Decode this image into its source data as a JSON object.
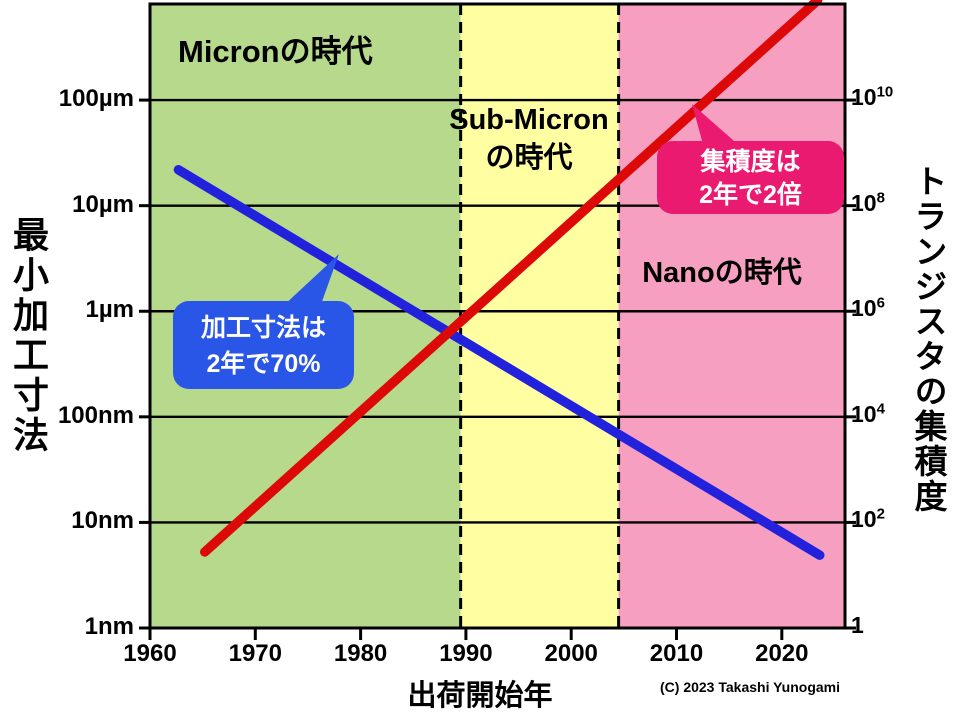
{
  "chart_data": {
    "type": "line",
    "title": "",
    "x_axis": {
      "label": "出荷開始年",
      "range": [
        1960,
        2026
      ],
      "ticks": [
        1960,
        1970,
        1980,
        1990,
        2000,
        2010,
        2020
      ]
    },
    "y_left": {
      "label": "最小加工寸法",
      "scale": "log",
      "range_log10": [
        0,
        5.91
      ],
      "ticks": [
        {
          "label": "100µm",
          "log10": 5
        },
        {
          "label": "10µm",
          "log10": 4
        },
        {
          "label": "1µm",
          "log10": 3
        },
        {
          "label": "100nm",
          "log10": 2
        },
        {
          "label": "10nm",
          "log10": 1
        },
        {
          "label": "1nm",
          "log10": 0
        }
      ]
    },
    "y_right": {
      "label": "トランジスタの集積度",
      "scale": "log",
      "range_log10": [
        0,
        11.82
      ],
      "ticks": [
        {
          "mantissa": "10",
          "exp": "10",
          "log10": 10
        },
        {
          "mantissa": "10",
          "exp": "8",
          "log10": 8
        },
        {
          "mantissa": "10",
          "exp": "6",
          "log10": 6
        },
        {
          "mantissa": "10",
          "exp": "4",
          "log10": 4
        },
        {
          "mantissa": "10",
          "exp": "2",
          "log10": 2
        },
        {
          "mantissa": "1",
          "exp": "",
          "log10": 0
        }
      ]
    },
    "regions": [
      {
        "name": "micron-era",
        "label": "Micronの時代",
        "from": 1960,
        "to": 1989.5,
        "color": "#b7d98b"
      },
      {
        "name": "sub-micron-era",
        "label": "Sub-Micronの時代",
        "label_line1": "Sub-Micron",
        "label_line2": "の時代",
        "from": 1989.5,
        "to": 2004.5,
        "color": "#ffffa2"
      },
      {
        "name": "nano-era",
        "label": "Nanoの時代",
        "from": 2004.5,
        "to": 2026,
        "color": "#f79fc0"
      }
    ],
    "series": [
      {
        "name": "minimum-feature-size",
        "axis": "left",
        "color": "#2222dd",
        "points": [
          {
            "year": 1962.7,
            "log10": 4.34
          },
          {
            "year": 2023.6,
            "log10": 0.69
          }
        ]
      },
      {
        "name": "transistor-density",
        "axis": "right",
        "color": "#dd0808",
        "points": [
          {
            "year": 1965.2,
            "log10": 1.44
          },
          {
            "year": 2023.4,
            "log10": 11.89
          }
        ]
      }
    ],
    "annotations": {
      "feature_size_callout": {
        "line1": "加工寸法は",
        "line2": "2年で70%",
        "bg": "#2a56e8",
        "text_color": "#ffffff"
      },
      "density_callout": {
        "line1": "集積度は",
        "line2": "2年で2倍",
        "bg": "#ea1a70",
        "text_color": "#ffffff"
      }
    },
    "copyright": "(C) 2023 Takashi Yunogami"
  }
}
